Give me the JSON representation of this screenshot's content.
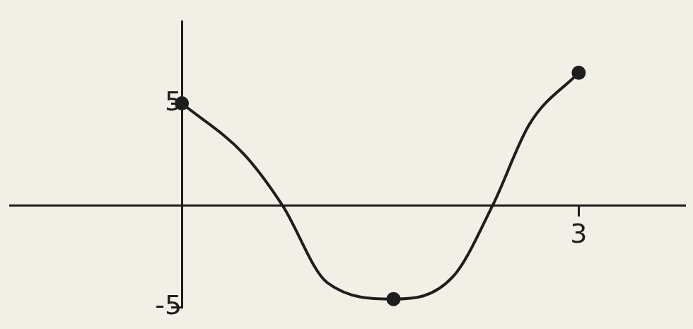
{
  "chart_data": {
    "type": "line",
    "x": [
      0,
      0.47,
      0.76,
      1.1,
      1.6,
      2.05,
      2.35,
      2.63,
      3
    ],
    "series": [
      {
        "type": "line",
        "color": "#1e1e1e",
        "marker": "none",
        "line_style": "solid",
        "values": [
          5,
          2.5,
          0,
          -3.8,
          -4.6,
          -3.5,
          0,
          4,
          6.5
        ]
      },
      {
        "type": "scatter",
        "color": "#1e1e1e",
        "marker": "circle",
        "values": [
          5,
          null,
          null,
          null,
          -4.6,
          null,
          null,
          null,
          6.5
        ]
      }
    ],
    "xlim": [
      -1.3,
      3.8
    ],
    "xticks": [
      3
    ],
    "ylim": [
      -5,
      9
    ],
    "yticks": [
      -5,
      5
    ],
    "grid": false
  }
}
